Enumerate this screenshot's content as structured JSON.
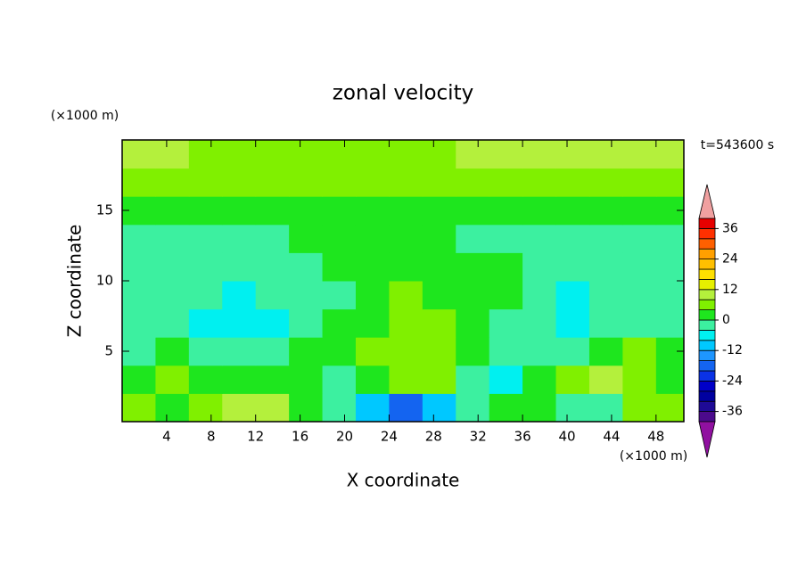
{
  "chart_data": {
    "type": "contour",
    "title": "zonal velocity",
    "x_label": "X coordinate",
    "y_label": "Z coordinate",
    "x_unit": "(×1000 m)",
    "y_unit": "(×1000 m)",
    "annotation": "t=543600 s",
    "xlim": [
      0,
      50.5
    ],
    "ylim": [
      0,
      20
    ],
    "xticks": [
      4,
      8,
      12,
      16,
      20,
      24,
      28,
      32,
      36,
      40,
      44,
      48
    ],
    "yticks": [
      5,
      10,
      15
    ],
    "field": {
      "x": [
        1.5,
        4.5,
        7.5,
        10.5,
        13.5,
        16.5,
        19.5,
        22.5,
        25.5,
        28.5,
        31.5,
        34.5,
        37.5,
        40.5,
        43.5,
        46.5,
        49.5
      ],
      "y": [
        1,
        3,
        5,
        7,
        9,
        11,
        13,
        15,
        17,
        19
      ],
      "z": [
        [
          6,
          2,
          6,
          10,
          10,
          2,
          -2,
          -10,
          -18,
          -10,
          -2,
          2,
          2,
          -2,
          -2,
          6,
          6
        ],
        [
          2,
          6,
          2,
          2,
          2,
          2,
          -2,
          2,
          6,
          6,
          -2,
          -6,
          2,
          6,
          10,
          6,
          2
        ],
        [
          -2,
          2,
          -2,
          -2,
          -2,
          2,
          2,
          6,
          6,
          6,
          2,
          -2,
          -2,
          -2,
          2,
          6,
          2
        ],
        [
          -2,
          -2,
          -6,
          -6,
          -6,
          -2,
          2,
          2,
          6,
          6,
          2,
          -2,
          -2,
          -6,
          -2,
          -2,
          -2
        ],
        [
          -2,
          -2,
          -2,
          -6,
          -2,
          -2,
          -2,
          2,
          6,
          2,
          2,
          2,
          -2,
          -6,
          -2,
          -2,
          -2
        ],
        [
          -2,
          -2,
          -2,
          -2,
          -2,
          -2,
          2,
          2,
          2,
          2,
          2,
          2,
          -2,
          -2,
          -2,
          -2,
          -2
        ],
        [
          -2,
          -2,
          -2,
          -2,
          -2,
          2,
          2,
          2,
          2,
          2,
          -2,
          -2,
          -2,
          -2,
          -2,
          -2,
          -2
        ],
        [
          2,
          2,
          2,
          2,
          2,
          2,
          2,
          2,
          2,
          2,
          2,
          2,
          2,
          2,
          2,
          2,
          2
        ],
        [
          6,
          6,
          6,
          6,
          6,
          6,
          6,
          6,
          6,
          6,
          6,
          6,
          6,
          6,
          6,
          6,
          6
        ],
        [
          10,
          10,
          6,
          6,
          6,
          6,
          6,
          6,
          6,
          6,
          10,
          10,
          10,
          10,
          10,
          10,
          10
        ]
      ]
    },
    "colorbar": {
      "levels": [
        -40,
        -36,
        -32,
        -28,
        -24,
        -20,
        -16,
        -12,
        -8,
        -4,
        0,
        4,
        8,
        12,
        16,
        20,
        24,
        28,
        32,
        36,
        40
      ],
      "colors": [
        "#4b0a8c",
        "#1e0a96",
        "#0000a0",
        "#0000c8",
        "#0a32e6",
        "#1464f0",
        "#1e96ff",
        "#00c8ff",
        "#00f0f0",
        "#3cf0a0",
        "#1ee61e",
        "#80f000",
        "#b4f03c",
        "#e6f000",
        "#ffe000",
        "#ffc000",
        "#ffa000",
        "#ff6000",
        "#ff3000",
        "#e60000"
      ],
      "under_color": "#9010a0",
      "over_color": "#f0a0a0",
      "ticks": [
        -36,
        -24,
        -12,
        0,
        12,
        24,
        36
      ]
    }
  }
}
